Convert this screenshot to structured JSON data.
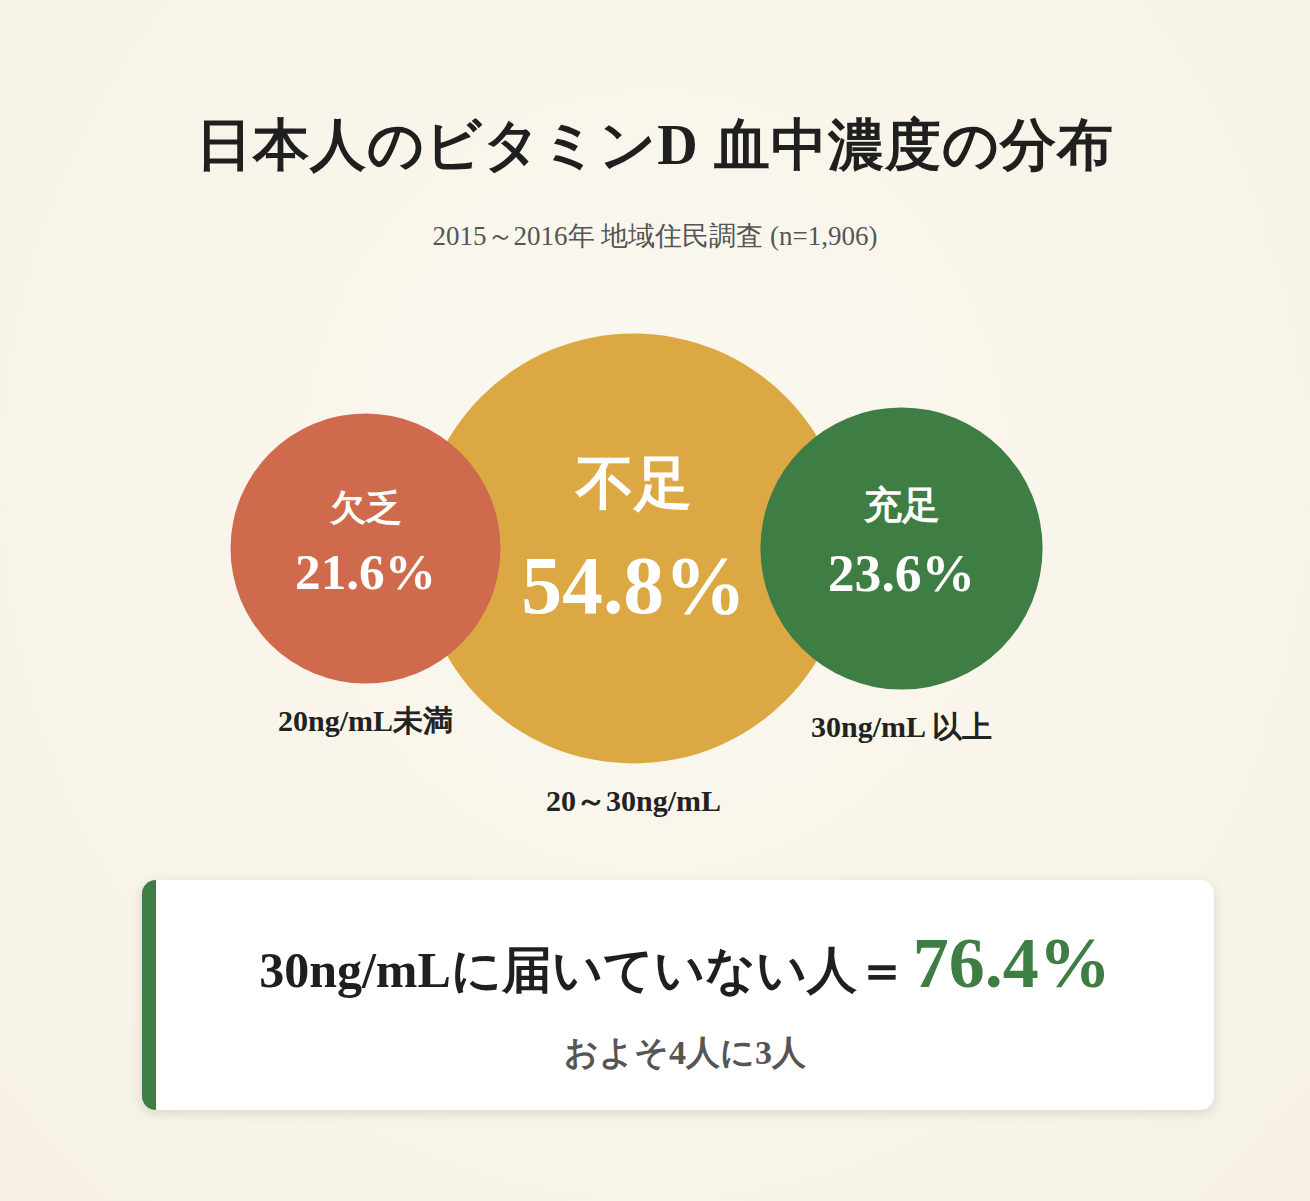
{
  "chart_data": {
    "type": "bubble",
    "title": "日本人のビタミンD 血中濃度の分布",
    "subtitle": "2015～2016年 地域住民調査 (n=1,906)",
    "categories": [
      "欠乏",
      "不足",
      "充足"
    ],
    "values": [
      21.6,
      54.8,
      23.6
    ],
    "value_labels": [
      "21.6%",
      "54.8%",
      "23.6%"
    ],
    "ranges": [
      "20ng/mL未満",
      "20～30ng/mL",
      "30ng/mL 以上"
    ],
    "colors": [
      "#cf6a4c",
      "#dba843",
      "#3e7d43"
    ],
    "data_labels": true,
    "tick_labels": false,
    "annotation": {
      "text": "30ng/mLに届いていない人＝",
      "highlight": "76.4%",
      "note": "およそ4人に3人"
    }
  }
}
